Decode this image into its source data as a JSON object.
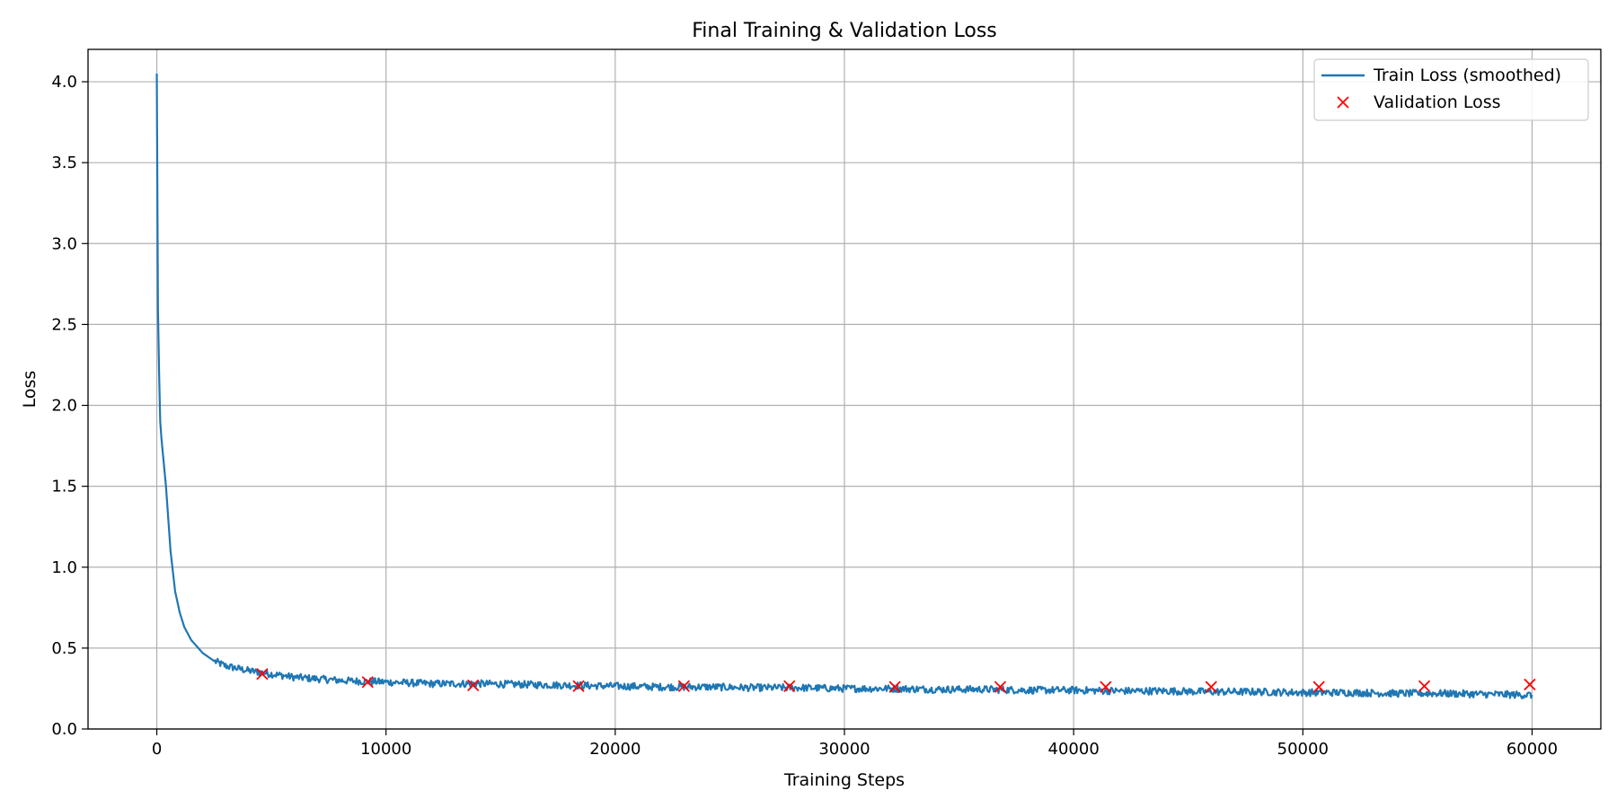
{
  "chart_data": {
    "type": "line",
    "title": "Final Training & Validation Loss",
    "xlabel": "Training Steps",
    "ylabel": "Loss",
    "xlim": [
      -3000,
      63000
    ],
    "ylim": [
      0.0,
      4.2
    ],
    "x_ticks": [
      0,
      10000,
      20000,
      30000,
      40000,
      50000,
      60000
    ],
    "x_tick_labels": [
      "0",
      "10000",
      "20000",
      "30000",
      "40000",
      "50000",
      "60000"
    ],
    "y_ticks": [
      0.0,
      0.5,
      1.0,
      1.5,
      2.0,
      2.5,
      3.0,
      3.5,
      4.0
    ],
    "y_tick_labels": [
      "0.0",
      "0.5",
      "1.0",
      "1.5",
      "2.0",
      "2.5",
      "3.0",
      "3.5",
      "4.0"
    ],
    "grid": true,
    "legend_position": "top-right",
    "series": [
      {
        "name": "Train Loss (smoothed)",
        "style": "line",
        "color": "#1f77b4",
        "x": [
          0,
          50,
          100,
          150,
          200,
          300,
          400,
          500,
          600,
          800,
          1000,
          1200,
          1500,
          2000,
          2500,
          3000,
          4000,
          5000,
          6000,
          8000,
          10000,
          12000,
          14000,
          16000,
          18000,
          20000,
          22000,
          24000,
          26000,
          28000,
          30000,
          32000,
          34000,
          36000,
          38000,
          40000,
          42000,
          44000,
          46000,
          48000,
          50000,
          52000,
          54000,
          56000,
          58000,
          60000
        ],
        "y": [
          4.05,
          2.6,
          2.2,
          1.9,
          1.8,
          1.65,
          1.5,
          1.3,
          1.1,
          0.85,
          0.72,
          0.63,
          0.55,
          0.47,
          0.42,
          0.39,
          0.36,
          0.34,
          0.32,
          0.3,
          0.29,
          0.28,
          0.28,
          0.275,
          0.27,
          0.265,
          0.26,
          0.26,
          0.255,
          0.255,
          0.25,
          0.25,
          0.245,
          0.245,
          0.24,
          0.24,
          0.235,
          0.235,
          0.23,
          0.23,
          0.225,
          0.225,
          0.22,
          0.22,
          0.215,
          0.21
        ]
      },
      {
        "name": "Validation Loss",
        "style": "marker-x",
        "color": "#ff0000",
        "x": [
          4600,
          9200,
          13800,
          18400,
          23000,
          27600,
          32200,
          36800,
          41400,
          46000,
          50700,
          55300,
          59900
        ],
        "y": [
          0.34,
          0.29,
          0.27,
          0.265,
          0.265,
          0.265,
          0.26,
          0.26,
          0.26,
          0.26,
          0.26,
          0.265,
          0.275
        ]
      }
    ]
  }
}
